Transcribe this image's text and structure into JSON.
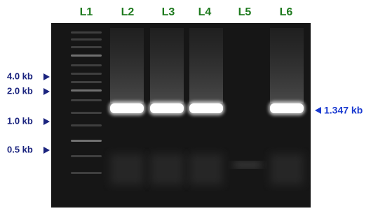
{
  "lanes": [
    "L1",
    "L2",
    "L3",
    "L4",
    "L5",
    "L6"
  ],
  "markers": [
    "4.0 kb",
    "2.0 kb",
    "1.0 kb",
    "0.5 kb"
  ],
  "band_label": "1.347 kb"
}
